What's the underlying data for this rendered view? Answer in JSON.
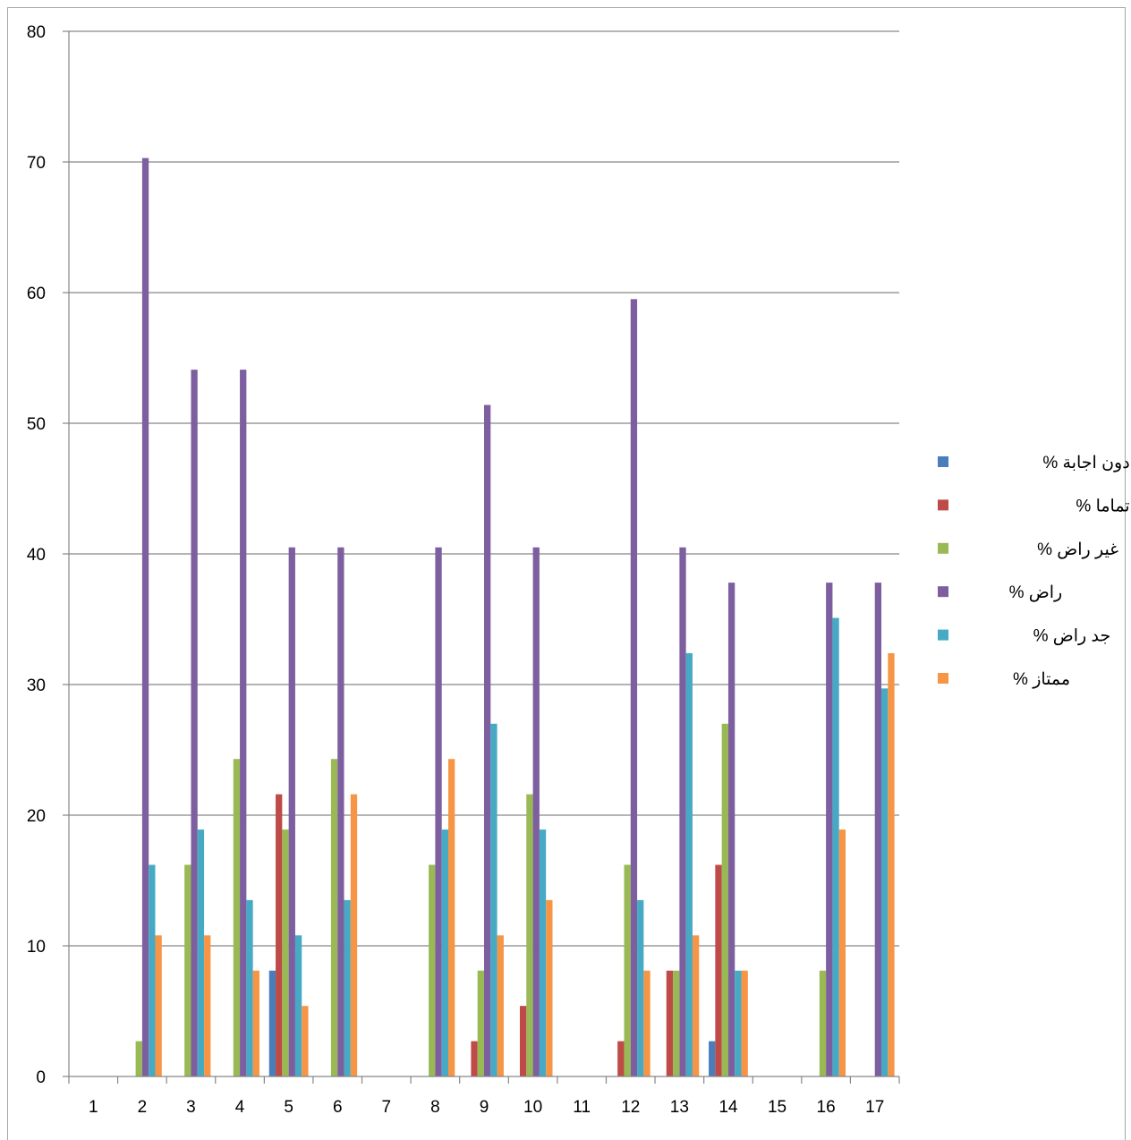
{
  "chart_data": {
    "type": "bar",
    "categories": [
      "1",
      "2",
      "3",
      "4",
      "5",
      "6",
      "7",
      "8",
      "9",
      "10",
      "11",
      "12",
      "13",
      "14",
      "15",
      "16",
      "17"
    ],
    "ylim": [
      0,
      80
    ],
    "yticks": [
      0,
      10,
      20,
      30,
      40,
      50,
      60,
      70,
      80
    ],
    "grid": true,
    "legend_position": "right",
    "series": [
      {
        "name": "دون اجابة %",
        "color": "#4a7ebb",
        "values": [
          0,
          0,
          0,
          0,
          8.1,
          0,
          0,
          0,
          0,
          0,
          0,
          0,
          0,
          2.7,
          0,
          0,
          0
        ]
      },
      {
        "name": "غير راض تماما %",
        "color": "#be4b48",
        "values": [
          0,
          0,
          0,
          0,
          21.6,
          0,
          0,
          0,
          2.7,
          5.4,
          0,
          2.7,
          8.1,
          16.2,
          0,
          0,
          0
        ]
      },
      {
        "name": "غير راض %",
        "color": "#98b954",
        "values": [
          0,
          2.7,
          16.2,
          24.3,
          18.9,
          24.3,
          0,
          16.2,
          8.1,
          21.6,
          0,
          16.2,
          8.1,
          27,
          0,
          8.1,
          0
        ]
      },
      {
        "name": "راض %",
        "color": "#7d5fa0",
        "values": [
          0,
          70.3,
          54.1,
          54.1,
          40.5,
          40.5,
          0,
          40.5,
          51.4,
          40.5,
          0,
          59.5,
          40.5,
          37.8,
          0,
          37.8,
          37.8
        ]
      },
      {
        "name": "جد راض %",
        "color": "#46aac5",
        "values": [
          0,
          16.2,
          18.9,
          13.5,
          10.8,
          13.5,
          0,
          18.9,
          27,
          18.9,
          0,
          13.5,
          32.4,
          8.1,
          0,
          35.1,
          29.7
        ]
      },
      {
        "name": "ممتاز %",
        "color": "#f69546",
        "values": [
          0,
          10.8,
          10.8,
          8.1,
          5.4,
          21.6,
          0,
          24.3,
          10.8,
          13.5,
          0,
          8.1,
          10.8,
          8.1,
          0,
          18.9,
          32.4
        ]
      }
    ]
  }
}
